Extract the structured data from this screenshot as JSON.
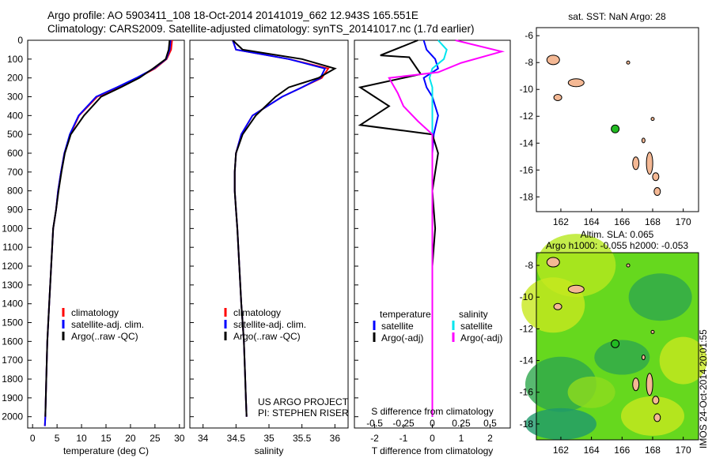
{
  "header": {
    "line1": "Argo profile: AO 5903411_108 18-Oct-2014 20141019_662 12.943S 165.551E",
    "line2": "Climatology: CARS2009. Satellite-adjusted climatology: synTS_20141017.nc (1.7d earlier)"
  },
  "colors": {
    "climatology": "#ff0000",
    "satellite": "#0000ff",
    "argo": "#000000",
    "satellite_diff": "#00e5ee",
    "argo_diff": "#ff00ff",
    "land": "#f4b894",
    "float_marker": "#22bb22"
  },
  "chart_data": [
    {
      "type": "line",
      "panel": "temperature",
      "xlabel": "temperature (deg C)",
      "xlim": [
        -1,
        31
      ],
      "ylim": [
        2060,
        0
      ],
      "xticks": [
        "0",
        "5",
        "10",
        "15",
        "20",
        "25",
        "30"
      ],
      "yticks": [
        "0",
        "100",
        "200",
        "300",
        "400",
        "500",
        "600",
        "700",
        "800",
        "900",
        "1000",
        "1100",
        "1200",
        "1300",
        "1400",
        "1500",
        "1600",
        "1700",
        "1800",
        "1900",
        "2000"
      ],
      "legend": [
        "climatology",
        "satellite-adj. clim.",
        "Argo(..raw -QC)"
      ],
      "series": [
        {
          "name": "climatology",
          "x": [
            28.5,
            28.3,
            27.4,
            25,
            21.4,
            17.5,
            13.2,
            9.5,
            7.7,
            6.5,
            5.8,
            5.2,
            4.8,
            4.2,
            3.8,
            3.4,
            3.2,
            3,
            2.8,
            2.7,
            2.6,
            2.5
          ],
          "y": [
            0,
            50,
            100,
            150,
            200,
            250,
            300,
            400,
            500,
            600,
            700,
            800,
            900,
            1000,
            1200,
            1400,
            1500,
            1600,
            1800,
            1900,
            2000,
            2050
          ]
        },
        {
          "name": "satellite-adj. clim.",
          "x": [
            28.2,
            28,
            27.3,
            24.8,
            21.2,
            17.2,
            13,
            9.4,
            7.6,
            6.5,
            5.8,
            5.2,
            4.8,
            4.2,
            3.8,
            3.4,
            3.2,
            3,
            2.8,
            2.7,
            2.6,
            2.5
          ],
          "y": [
            0,
            50,
            100,
            150,
            200,
            250,
            300,
            400,
            500,
            600,
            700,
            800,
            900,
            1000,
            1200,
            1400,
            1500,
            1600,
            1800,
            1900,
            2000,
            2050
          ]
        },
        {
          "name": "Argo(..raw -QC)",
          "x": [
            28,
            27.8,
            27.2,
            24.6,
            21.8,
            18,
            14,
            10.5,
            7.8,
            6.6,
            5.9,
            5.3,
            4.8,
            4.2,
            3.8,
            3.4,
            3.2,
            3,
            2.8,
            2.7,
            2.6
          ],
          "y": [
            0,
            50,
            100,
            150,
            200,
            250,
            300,
            400,
            500,
            600,
            700,
            800,
            900,
            1000,
            1200,
            1400,
            1500,
            1600,
            1800,
            1900,
            2000
          ]
        }
      ]
    },
    {
      "type": "line",
      "panel": "salinity",
      "xlabel": "salinity",
      "xlim": [
        33.8,
        36.2
      ],
      "ylim": [
        2060,
        0
      ],
      "xticks": [
        "34",
        "34.5",
        "35",
        "35.5",
        "36"
      ],
      "legend": [
        "climatology",
        "satellite-adj. clim.",
        "Argo(..raw -QC)"
      ],
      "annotation": [
        "US ARGO PROJECT",
        "PI: STEPHEN RISER"
      ],
      "series": [
        {
          "name": "climatology",
          "x": [
            34.45,
            34.5,
            35.3,
            35.9,
            35.8,
            35.5,
            35.2,
            34.75,
            34.58,
            34.5,
            34.48,
            34.48,
            34.5,
            34.52,
            34.55,
            34.58,
            34.6,
            34.62,
            34.64,
            34.65,
            34.66
          ],
          "y": [
            0,
            50,
            100,
            150,
            200,
            250,
            300,
            400,
            500,
            600,
            700,
            800,
            900,
            1000,
            1200,
            1400,
            1500,
            1600,
            1800,
            1900,
            2000
          ]
        },
        {
          "name": "satellite-adj. clim.",
          "x": [
            34.45,
            34.5,
            35.3,
            35.85,
            35.78,
            35.5,
            35.2,
            34.75,
            34.58,
            34.5,
            34.48,
            34.48,
            34.5,
            34.52,
            34.55,
            34.58,
            34.6,
            34.62,
            34.64,
            34.65,
            34.66
          ],
          "y": [
            0,
            50,
            100,
            150,
            200,
            250,
            300,
            400,
            500,
            600,
            700,
            800,
            900,
            1000,
            1200,
            1400,
            1500,
            1600,
            1800,
            1900,
            2000
          ]
        },
        {
          "name": "Argo(..raw -QC)",
          "x": [
            34.45,
            34.6,
            35.5,
            36,
            35.75,
            35.3,
            35.1,
            34.8,
            34.6,
            34.5,
            34.48,
            34.48,
            34.5,
            34.52,
            34.55,
            34.58,
            34.6,
            34.62,
            34.64,
            34.65,
            34.66
          ],
          "y": [
            0,
            50,
            100,
            150,
            200,
            250,
            300,
            400,
            500,
            600,
            700,
            800,
            900,
            1000,
            1200,
            1400,
            1500,
            1600,
            1800,
            1900,
            2000
          ]
        }
      ]
    },
    {
      "type": "line",
      "panel": "difference",
      "xlabel": "T difference from climatology",
      "x2label": "S difference from climatology",
      "xlim": [
        -2.7,
        2.7
      ],
      "ylim": [
        2060,
        0
      ],
      "xticks": [
        "-2",
        "-1",
        "0",
        "1",
        "2"
      ],
      "x2ticks": [
        "-0.5",
        "-0.25",
        "0",
        "0.25",
        "0.5"
      ],
      "legend_headers": [
        "temperature",
        "salinity"
      ],
      "legend": [
        "satellite",
        "Argo(-adj)",
        "satellite",
        "Argo(-adj)"
      ],
      "series": [
        {
          "name": "T satellite",
          "x": [
            -0.3,
            -0.2,
            0.1,
            0.2,
            -0.3,
            -0.2,
            0,
            0.2,
            0.05,
            0,
            0,
            0,
            0,
            0,
            0,
            0,
            0,
            0,
            0
          ],
          "y": [
            0,
            50,
            100,
            150,
            200,
            250,
            300,
            400,
            500,
            600,
            700,
            800,
            1000,
            1200,
            1400,
            1600,
            1800,
            1900,
            2000
          ]
        },
        {
          "name": "T Argo(-adj)",
          "x": [
            -0.5,
            -1.8,
            -0.8,
            -0.4,
            -2.5,
            -2,
            -1.5,
            -2.5,
            0,
            0.2,
            0.1,
            0,
            0.1,
            0,
            0,
            0,
            0,
            0,
            0
          ],
          "y": [
            0,
            80,
            90,
            180,
            250,
            300,
            350,
            450,
            500,
            600,
            700,
            800,
            1000,
            1200,
            1400,
            1600,
            1800,
            1900,
            2000
          ]
        },
        {
          "name": "S satellite",
          "x": [
            0.2,
            0.5,
            0.4,
            0,
            -0.1,
            0,
            0,
            0,
            0,
            0,
            0,
            0,
            0,
            0,
            0,
            0,
            0,
            0,
            0
          ],
          "y": [
            0,
            50,
            100,
            150,
            200,
            250,
            300,
            400,
            500,
            600,
            700,
            800,
            1000,
            1200,
            1400,
            1600,
            1800,
            1900,
            2000
          ]
        },
        {
          "name": "S Argo(-adj)",
          "x": [
            0.8,
            2.4,
            1,
            0.2,
            -1.5,
            -1.2,
            -1,
            -0.5,
            0,
            0,
            0,
            0,
            0,
            0,
            0,
            0,
            0,
            0,
            0
          ],
          "y": [
            0,
            60,
            120,
            170,
            200,
            280,
            350,
            430,
            500,
            600,
            700,
            800,
            1000,
            1200,
            1400,
            1600,
            1800,
            1900,
            2000
          ]
        }
      ]
    }
  ],
  "map1": {
    "title": "sat. SST: NaN Argo: 28",
    "xticks": [
      "162",
      "164",
      "166",
      "168",
      "170"
    ],
    "yticks": [
      "-6",
      "-8",
      "-10",
      "-12",
      "-14",
      "-16",
      "-18"
    ],
    "float_lon": 165.551,
    "float_lat": -12.943
  },
  "map2": {
    "title1": "Altim. SLA: 0.065",
    "title2": "Argo h1000: -0.055 h2000: -0.053",
    "xticks": [
      "162",
      "164",
      "166",
      "168",
      "170"
    ],
    "yticks": [
      "-8",
      "-10",
      "-12",
      "-14",
      "-16",
      "-18"
    ],
    "float_lon": 165.551,
    "float_lat": -12.943
  },
  "footer": "IMOS 24-Oct-2014 20:01:55"
}
